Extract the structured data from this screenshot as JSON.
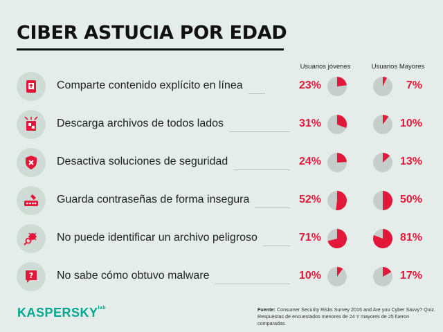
{
  "title": "CIBER ASTUCIA POR EDAD",
  "columns": {
    "young": "Usuarios jóvenes",
    "older": "Usuarios Mayores"
  },
  "chart_data": {
    "type": "pie",
    "title": "CIBER ASTUCIA POR EDAD",
    "series": [
      {
        "name": "Usuarios jóvenes",
        "values": [
          23,
          31,
          24,
          52,
          71,
          10
        ]
      },
      {
        "name": "Usuarios Mayores",
        "values": [
          7,
          10,
          13,
          50,
          81,
          17
        ]
      }
    ],
    "categories": [
      "Comparte contenido explícito en línea",
      "Descarga archivos de todos lados",
      "Desactiva soluciones de seguridad",
      "Guarda contraseñas de forma insegura",
      "No puede identificar un archivo peligroso",
      "No sabe cómo obtuvo malware"
    ],
    "unit": "%",
    "colors": {
      "accent": "#e2173a",
      "pie_bg": "#c6cdcb"
    }
  },
  "rows": [
    {
      "label": "Comparte contenido explícito en línea",
      "young": "23%",
      "older": "7%",
      "icon": "share-icon"
    },
    {
      "label": "Descarga archivos de todos lados",
      "young": "31%",
      "older": "10%",
      "icon": "download-icon"
    },
    {
      "label": "Desactiva soluciones de seguridad",
      "young": "24%",
      "older": "13%",
      "icon": "shield-x-icon"
    },
    {
      "label": "Guarda contraseñas de forma insegura",
      "young": "52%",
      "older": "50%",
      "icon": "password-icon"
    },
    {
      "label": "No puede identificar un archivo peligroso",
      "young": "71%",
      "older": "81%",
      "icon": "bug-search-icon"
    },
    {
      "label": "No sabe cómo obtuvo malware",
      "young": "10%",
      "older": "17%",
      "icon": "question-icon"
    }
  ],
  "footer": {
    "logo": "KASPERSKY",
    "logo_sup": "lab",
    "source_label": "Fuente:",
    "source_text": "Consumer Security Risks Survey 2015 and Are you Cyber Savvy? Quiz.",
    "note": "Respuestas de encuestados menores de 24 Y mayores de 25 fueron comparadas."
  }
}
